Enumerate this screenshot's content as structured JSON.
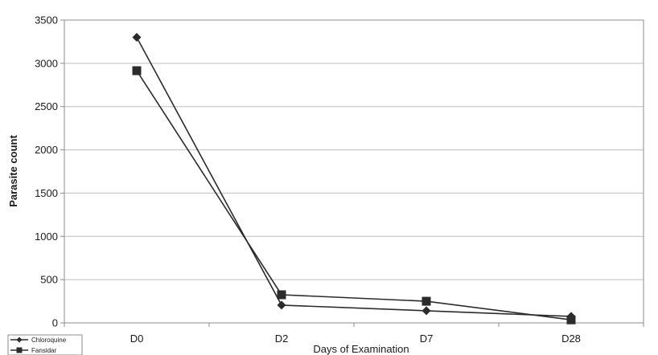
{
  "chart_data": {
    "type": "line",
    "categories": [
      "D0",
      "D2",
      "D7",
      "D28"
    ],
    "series": [
      {
        "name": "Chloroquine",
        "marker": "diamond",
        "values": [
          3300,
          205,
          140,
          75
        ]
      },
      {
        "name": "Fansidar",
        "marker": "square",
        "values": [
          2915,
          325,
          250,
          35
        ]
      }
    ],
    "title": "",
    "xlabel": "Days of Examination",
    "ylabel": "Parasite  count",
    "ylim": [
      0,
      3500
    ],
    "yticks": [
      0,
      500,
      1000,
      1500,
      2000,
      2500,
      3000,
      3500
    ],
    "grid": true,
    "legend_position": "bottom-left",
    "colors": {
      "series": "#2b2b2b",
      "grid": "#bdbdbd",
      "axis": "#8c8c8c"
    }
  }
}
